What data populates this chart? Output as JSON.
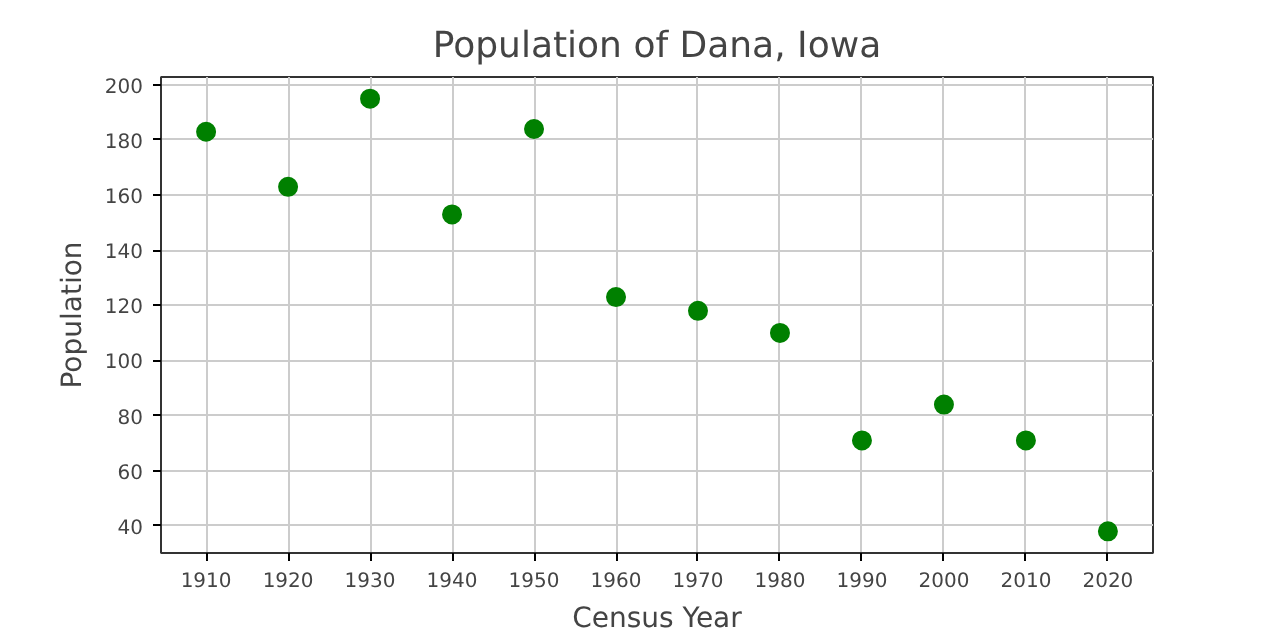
{
  "chart_data": {
    "type": "scatter",
    "title": "Population of Dana, Iowa",
    "xlabel": "Census Year",
    "ylabel": "Population",
    "x": [
      1910,
      1920,
      1930,
      1940,
      1950,
      1960,
      1970,
      1980,
      1990,
      2000,
      2010,
      2020
    ],
    "series": [
      {
        "color": "#008000",
        "values": [
          183,
          163,
          195,
          153,
          184,
          123,
          118,
          110,
          71,
          84,
          71,
          38
        ]
      }
    ],
    "xlim": [
      1904.5,
      2025.5
    ],
    "ylim": [
      30.15,
      202.85
    ],
    "xticks": [
      1910,
      1920,
      1930,
      1940,
      1950,
      1960,
      1970,
      1980,
      1990,
      2000,
      2010,
      2020
    ],
    "yticks": [
      40,
      60,
      80,
      100,
      120,
      140,
      160,
      180,
      200
    ],
    "grid": true,
    "marker": "circle"
  }
}
